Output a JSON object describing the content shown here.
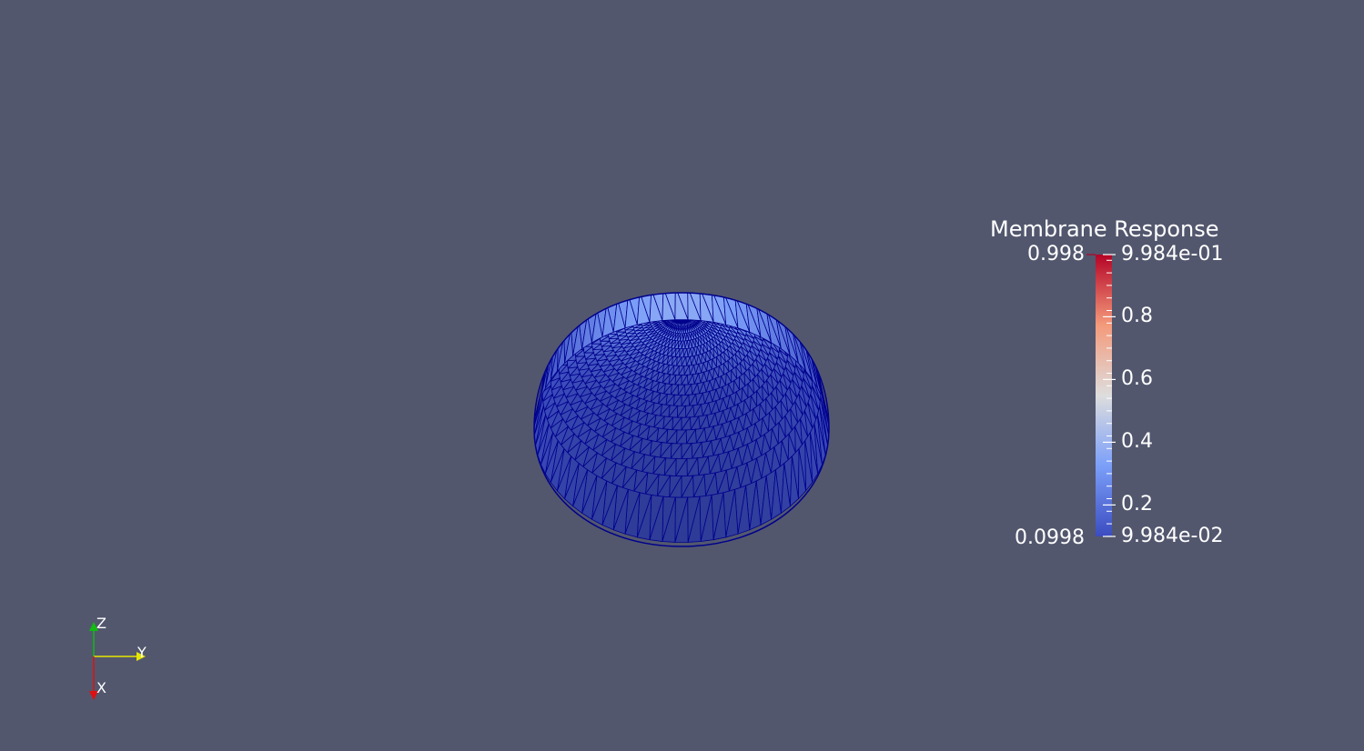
{
  "colors": {
    "background": "#52576e",
    "mesh_edge": "#00008c",
    "cmap_low": "#3b4cc0",
    "cmap_mid": "#dddddd",
    "cmap_high": "#b40426",
    "axis_x": "#dd1111",
    "axis_y": "#e6e600",
    "axis_z": "#11bb11"
  },
  "legend": {
    "title": "Membrane Response",
    "range_max_label": "0.998",
    "range_min_label": "0.0998",
    "ticks": [
      {
        "value": 0.9984,
        "label": "9.984e-01"
      },
      {
        "value": 0.8,
        "label": "0.8"
      },
      {
        "value": 0.6,
        "label": "0.6"
      },
      {
        "value": 0.4,
        "label": "0.4"
      },
      {
        "value": 0.2,
        "label": "0.2"
      },
      {
        "value": 0.09984,
        "label": "9.984e-02"
      }
    ],
    "min": 0.09984,
    "max": 0.9984
  },
  "orientation_axes": {
    "x_label": "X",
    "y_label": "Y",
    "z_label": "Z"
  }
}
